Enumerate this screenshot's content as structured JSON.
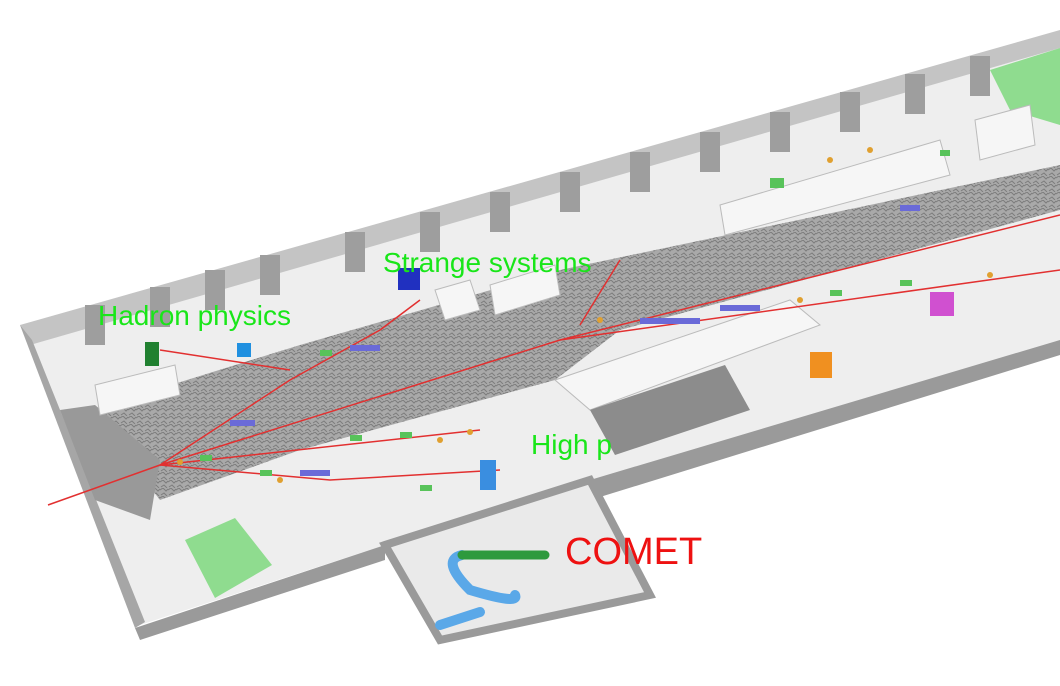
{
  "labels": {
    "hadron": "Hadron physics",
    "strange": "Strange systems",
    "highp": "High p",
    "comet": "COMET"
  },
  "colors": {
    "area_labels": "#19e619",
    "comet_label": "#ee1111",
    "floor": "#eeeeee",
    "wall": "#b8b8b8",
    "beam_area": "#a8a8a8",
    "beamline": "#e23030",
    "magnet": "#58c35a",
    "quadrupole": "#e0a030",
    "dipole_blue": "#6a6ad8"
  }
}
